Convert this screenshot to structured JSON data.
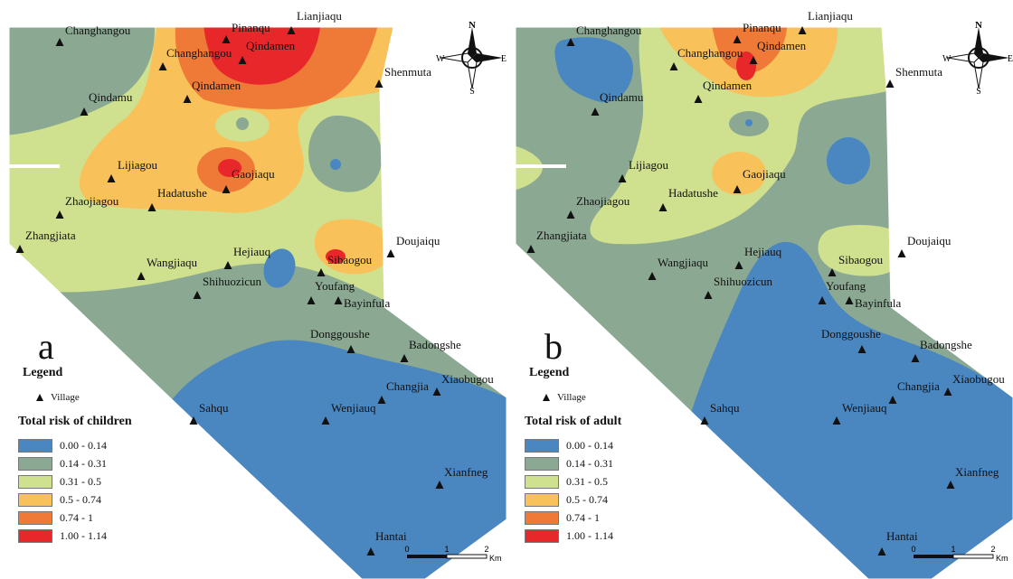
{
  "colors": {
    "c0": "#4a86c0",
    "c1": "#8ba992",
    "c2": "#cfe08e",
    "c3": "#f8c15a",
    "c4": "#ef7a38",
    "c5": "#e8272b"
  },
  "compass": {
    "n": "N",
    "s": "S",
    "e": "E",
    "w": "W"
  },
  "scale": {
    "t0": "0",
    "t1": "1",
    "t2": "2",
    "unit": "Km"
  },
  "villages": [
    {
      "name": "Changhangou"
    },
    {
      "name": "Pinanqu"
    },
    {
      "name": "Lianjiaqu"
    },
    {
      "name": "Qindamen"
    },
    {
      "name": "Changhangou"
    },
    {
      "name": "Shenmuta"
    },
    {
      "name": "Qindamu"
    },
    {
      "name": "Qindamen"
    },
    {
      "name": "Gaojiaqu"
    },
    {
      "name": "Lijiagou"
    },
    {
      "name": "Hadatushe"
    },
    {
      "name": "Zhaojiagou"
    },
    {
      "name": "Zhangjiata"
    },
    {
      "name": "Doujaiqu"
    },
    {
      "name": "Wangjiaqu"
    },
    {
      "name": "Hejiauq"
    },
    {
      "name": "Sibaogou"
    },
    {
      "name": "Shihuozicun"
    },
    {
      "name": "Youfang"
    },
    {
      "name": "Bayinfula"
    },
    {
      "name": "Donggoushe"
    },
    {
      "name": "Badongshe"
    },
    {
      "name": "Xiaobugou"
    },
    {
      "name": "Changjia"
    },
    {
      "name": "Sahqu"
    },
    {
      "name": "Wenjiauq"
    },
    {
      "name": "Xianfneg"
    },
    {
      "name": "Hantai"
    }
  ],
  "panels": [
    {
      "letter": "a",
      "legend_title": "Legend",
      "village_label": "Village",
      "risk_title": "Total risk of children",
      "classes": [
        "0.00 - 0.14",
        "0.14 - 0.31",
        "0.31 - 0.5",
        "0.5 - 0.74",
        "0.74 - 1",
        "1.00 - 1.14"
      ]
    },
    {
      "letter": "b",
      "legend_title": "Legend",
      "village_label": "Village",
      "risk_title": "Total risk of adult",
      "classes": [
        "0.00 - 0.14",
        "0.14 - 0.31",
        "0.31 - 0.5",
        "0.5 - 0.74",
        "0.74 - 1",
        "1.00 - 1.14"
      ]
    }
  ]
}
